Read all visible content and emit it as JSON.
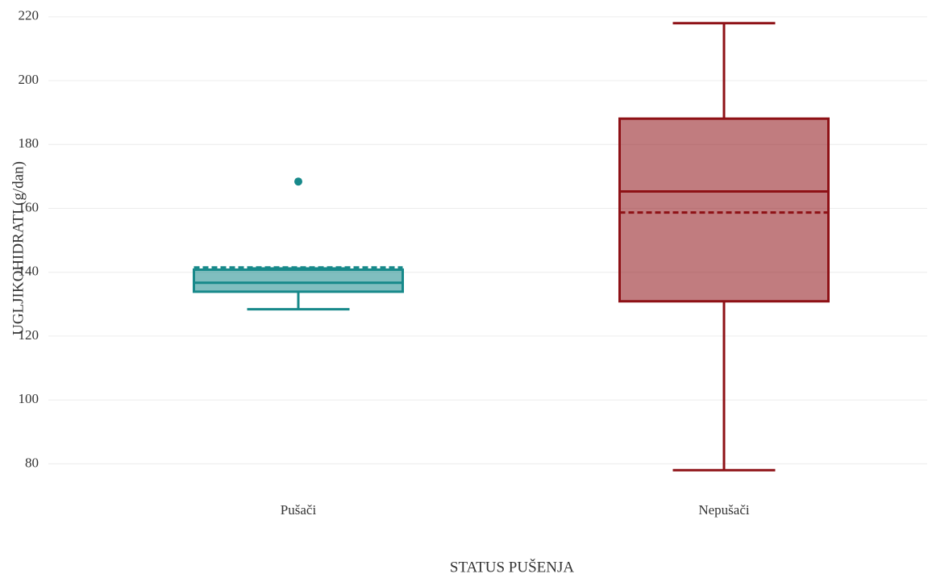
{
  "chart_data": {
    "type": "box",
    "x_label": "STATUS PUŠENJA",
    "y_label": "UGLJIKOHIDRATI (g/dan)",
    "categories": [
      "Pušači",
      "Nepušači"
    ],
    "boxes": [
      {
        "color": "#17898a",
        "whisker_low": 128.4,
        "q1": 133.9,
        "median": 136.7,
        "q3": 140.8,
        "whisker_high": 141.2,
        "mean": 141.5,
        "outliers": [
          168.4
        ]
      },
      {
        "color": "#8e1116",
        "whisker_low": 78,
        "q1": 130.9,
        "median": 165.3,
        "q3": 188.1,
        "whisker_high": 218,
        "mean": 158.7,
        "outliers": []
      }
    ],
    "ylim": [
      71,
      224
    ],
    "yticks": [
      80,
      100,
      120,
      140,
      160,
      180,
      200,
      220
    ],
    "grid": true
  }
}
